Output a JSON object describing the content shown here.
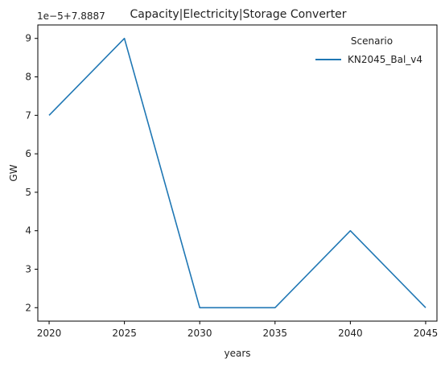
{
  "chart_data": {
    "type": "line",
    "title": "Capacity|Electricity|Storage Converter",
    "xlabel": "years",
    "ylabel": "GW",
    "y_offset_label": "1e−5+7.8887",
    "x": [
      2020,
      2025,
      2030,
      2035,
      2040,
      2045
    ],
    "x_ticks": [
      "2020",
      "2025",
      "2030",
      "2035",
      "2040",
      "2045"
    ],
    "y_ticks": [
      "2",
      "3",
      "4",
      "5",
      "6",
      "7",
      "8",
      "9"
    ],
    "y_tick_values": [
      2,
      3,
      4,
      5,
      6,
      7,
      8,
      9
    ],
    "xlim": [
      2019.25,
      2045.75
    ],
    "ylim": [
      1.65,
      9.35
    ],
    "legend_title": "Scenario",
    "legend_position": "top-right",
    "grid": false,
    "series": [
      {
        "name": "KN2045_Bal_v4",
        "values": [
          7,
          9,
          2,
          2,
          4,
          2
        ],
        "color": "#1f77b4"
      }
    ]
  }
}
